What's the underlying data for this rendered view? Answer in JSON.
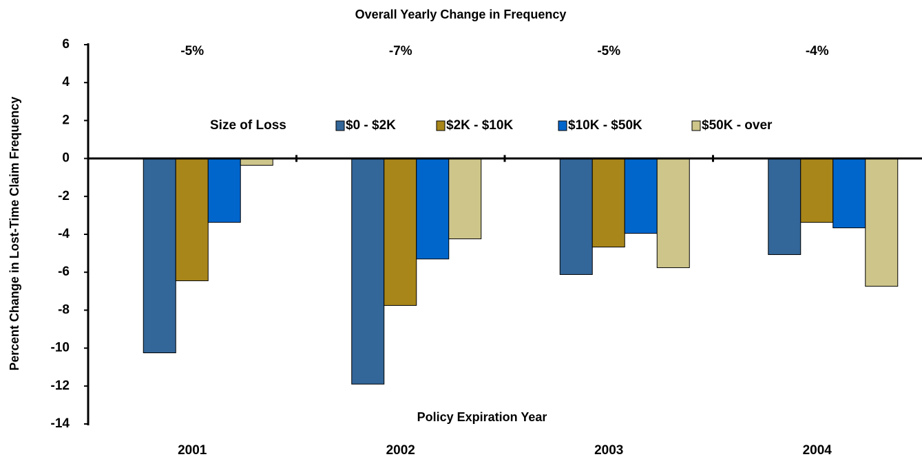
{
  "chart_data": {
    "type": "bar",
    "subtitle": "Overall Yearly Change in Frequency",
    "annotations": [
      "-5%",
      "-7%",
      "-5%",
      "-4%"
    ],
    "x_label": "Policy Expiration Year",
    "y_label": "Percent Change in Lost-Time Claim Frequency",
    "legend_title": "Size of Loss",
    "categories": [
      "2001",
      "2002",
      "2003",
      "2004"
    ],
    "series": [
      {
        "name": "$0 - $2K",
        "color": "#336699",
        "values": [
          -10.25,
          -11.9,
          -6.12,
          -5.07
        ]
      },
      {
        "name": "$2K - $10K",
        "color": "#a8861a",
        "values": [
          -6.45,
          -7.75,
          -4.67,
          -3.37
        ]
      },
      {
        "name": "$10K - $50K",
        "color": "#0066cc",
        "values": [
          -3.37,
          -5.3,
          -3.95,
          -3.66
        ]
      },
      {
        "name": "$50K - over",
        "color": "#cdc58a",
        "values": [
          -0.36,
          -4.24,
          -5.76,
          -6.74
        ]
      }
    ],
    "ylim": [
      -14,
      6
    ],
    "yticks": [
      6,
      4,
      2,
      0,
      -2,
      -4,
      -6,
      -8,
      -10,
      -12,
      -14
    ]
  }
}
